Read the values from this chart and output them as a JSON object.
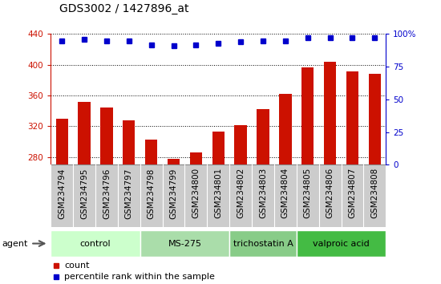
{
  "title": "GDS3002 / 1427896_at",
  "samples": [
    "GSM234794",
    "GSM234795",
    "GSM234796",
    "GSM234797",
    "GSM234798",
    "GSM234799",
    "GSM234800",
    "GSM234801",
    "GSM234802",
    "GSM234803",
    "GSM234804",
    "GSM234805",
    "GSM234806",
    "GSM234807",
    "GSM234808"
  ],
  "counts": [
    330,
    352,
    344,
    328,
    303,
    278,
    286,
    313,
    321,
    342,
    362,
    397,
    404,
    391,
    388
  ],
  "percentiles": [
    95,
    96,
    95,
    95,
    92,
    91,
    92,
    93,
    94,
    95,
    95,
    97,
    97,
    97,
    97
  ],
  "groups": [
    {
      "label": "control",
      "start": 0,
      "end": 4,
      "color": "#ccffcc"
    },
    {
      "label": "MS-275",
      "start": 4,
      "end": 8,
      "color": "#aaddaa"
    },
    {
      "label": "trichostatin A",
      "start": 8,
      "end": 11,
      "color": "#88cc88"
    },
    {
      "label": "valproic acid",
      "start": 11,
      "end": 15,
      "color": "#44bb44"
    }
  ],
  "ylim_left": [
    270,
    440
  ],
  "yticks_left": [
    280,
    320,
    360,
    400,
    440
  ],
  "ylim_right": [
    0,
    100
  ],
  "yticks_right": [
    0,
    25,
    50,
    75,
    100
  ],
  "bar_color": "#cc1100",
  "dot_color": "#0000cc",
  "bar_width": 0.55,
  "bg_color": "#cccccc",
  "plot_bg": "#ffffff",
  "grid_color": "#000000",
  "title_fontsize": 10,
  "tick_fontsize": 7.5,
  "label_fontsize": 8
}
